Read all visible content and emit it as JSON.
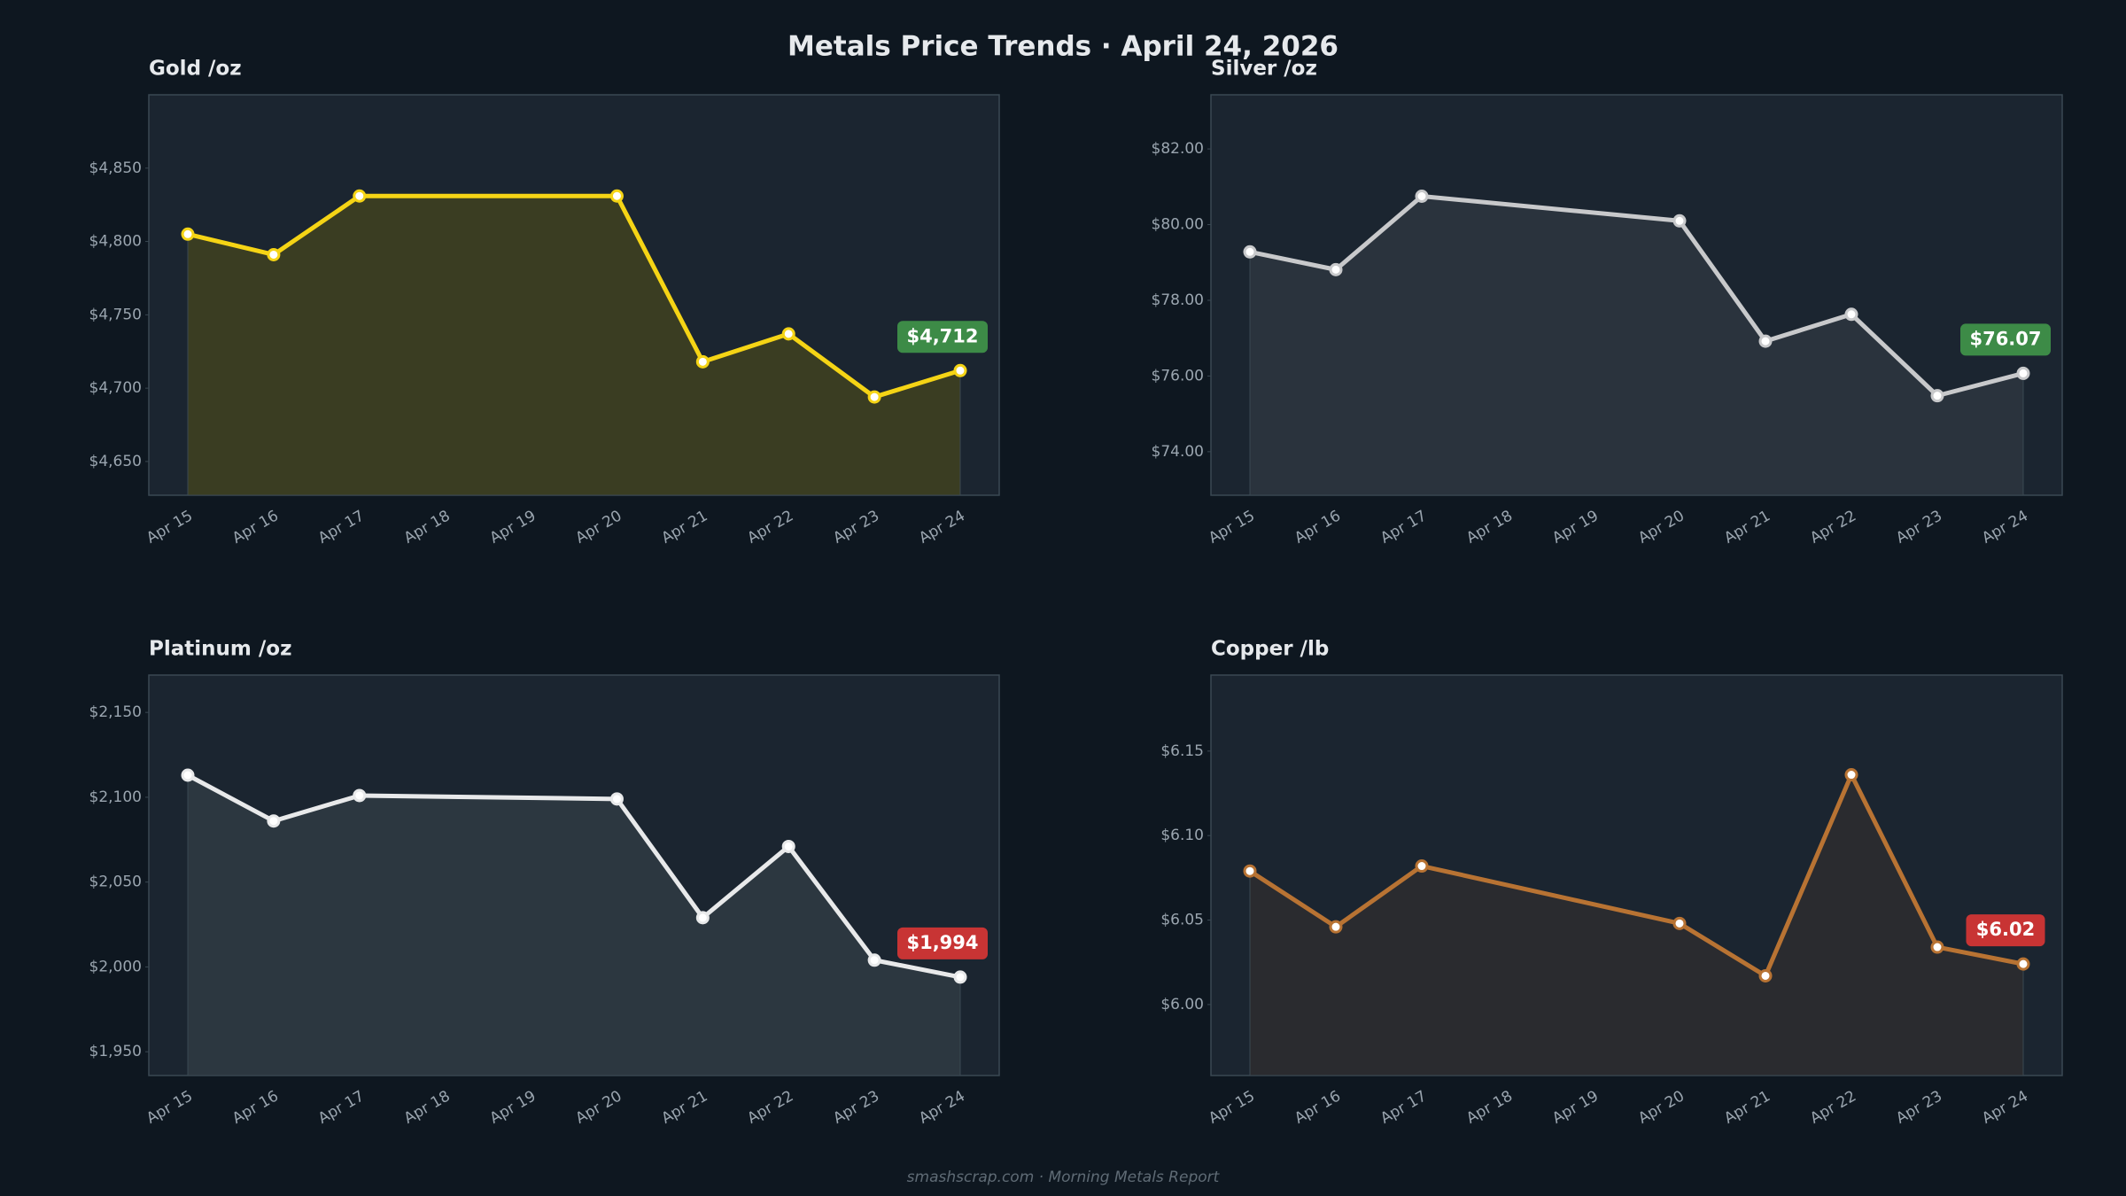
{
  "title": "Metals Price Trends  ·  April 24, 2026",
  "footer": "smashscrap.com  ·  Morning Metals Report",
  "chart_data": [
    {
      "type": "line",
      "title": "Gold  /oz",
      "color": "#f5d415",
      "fill": "#3a3d22",
      "x": [
        "Apr 15",
        "Apr 16",
        "Apr 17",
        "Apr 20",
        "Apr 21",
        "Apr 22",
        "Apr 23",
        "Apr 24"
      ],
      "values": [
        4805,
        4791,
        4831,
        4831,
        4718,
        4737,
        4694,
        4712
      ],
      "value_labels": [
        null,
        null,
        null,
        null,
        null,
        null,
        null,
        "$4,712"
      ],
      "label_color": "#3d8b47",
      "xticks": [
        "Apr 15",
        "Apr 16",
        "Apr 17",
        "Apr 18",
        "Apr 19",
        "Apr 20",
        "Apr 21",
        "Apr 22",
        "Apr 23",
        "Apr 24"
      ],
      "ylim": [
        4627,
        4900
      ],
      "yticks": [
        {
          "value": 4650,
          "label": "$4,650"
        },
        {
          "value": 4700,
          "label": "$4,700"
        },
        {
          "value": 4750,
          "label": "$4,750"
        },
        {
          "value": 4800,
          "label": "$4,800"
        },
        {
          "value": 4850,
          "label": "$4,850"
        }
      ],
      "grid": false
    },
    {
      "type": "line",
      "title": "Silver  /oz",
      "color": "#c8c9cb",
      "fill": "#2a333d",
      "x": [
        "Apr 15",
        "Apr 16",
        "Apr 17",
        "Apr 20",
        "Apr 21",
        "Apr 22",
        "Apr 23",
        "Apr 24"
      ],
      "values": [
        79.28,
        78.81,
        80.75,
        80.1,
        76.92,
        77.63,
        75.48,
        76.07
      ],
      "value_labels": [
        null,
        null,
        null,
        null,
        null,
        null,
        null,
        "$76.07"
      ],
      "label_color": "#3d8b47",
      "xticks": [
        "Apr 15",
        "Apr 16",
        "Apr 17",
        "Apr 18",
        "Apr 19",
        "Apr 20",
        "Apr 21",
        "Apr 22",
        "Apr 23",
        "Apr 24"
      ],
      "ylim": [
        72.85,
        83.43
      ],
      "yticks": [
        {
          "value": 74,
          "label": "$74.00"
        },
        {
          "value": 76,
          "label": "$76.00"
        },
        {
          "value": 78,
          "label": "$78.00"
        },
        {
          "value": 80,
          "label": "$80.00"
        },
        {
          "value": 82,
          "label": "$82.00"
        }
      ],
      "grid": false
    },
    {
      "type": "line",
      "title": "Platinum  /oz",
      "color": "#e8e9ea",
      "fill": "#2c3740",
      "x": [
        "Apr 15",
        "Apr 16",
        "Apr 17",
        "Apr 20",
        "Apr 21",
        "Apr 22",
        "Apr 23",
        "Apr 24"
      ],
      "values": [
        2113,
        2086,
        2101,
        2099,
        2029,
        2071,
        2004,
        1994
      ],
      "value_labels": [
        null,
        null,
        null,
        null,
        null,
        null,
        null,
        "$1,994"
      ],
      "label_color": "#c83434",
      "xticks": [
        "Apr 15",
        "Apr 16",
        "Apr 17",
        "Apr 18",
        "Apr 19",
        "Apr 20",
        "Apr 21",
        "Apr 22",
        "Apr 23",
        "Apr 24"
      ],
      "ylim": [
        1936,
        2172
      ],
      "yticks": [
        {
          "value": 1950,
          "label": "$1,950"
        },
        {
          "value": 2000,
          "label": "$2,000"
        },
        {
          "value": 2050,
          "label": "$2,050"
        },
        {
          "value": 2100,
          "label": "$2,100"
        },
        {
          "value": 2150,
          "label": "$2,150"
        }
      ],
      "grid": false
    },
    {
      "type": "line",
      "title": "Copper  /lb",
      "color": "#b87333",
      "fill": "#2a2b2f",
      "x": [
        "Apr 15",
        "Apr 16",
        "Apr 17",
        "Apr 20",
        "Apr 21",
        "Apr 22",
        "Apr 23",
        "Apr 24"
      ],
      "values": [
        6.079,
        6.046,
        6.082,
        6.048,
        6.017,
        6.136,
        6.034,
        6.024
      ],
      "value_labels": [
        null,
        null,
        null,
        null,
        null,
        null,
        null,
        "$6.02"
      ],
      "label_color": "#c83434",
      "xticks": [
        "Apr 15",
        "Apr 16",
        "Apr 17",
        "Apr 18",
        "Apr 19",
        "Apr 20",
        "Apr 21",
        "Apr 22",
        "Apr 23",
        "Apr 24"
      ],
      "ylim": [
        5.958,
        6.195
      ],
      "yticks": [
        {
          "value": 6.0,
          "label": "$6.00"
        },
        {
          "value": 6.05,
          "label": "$6.05"
        },
        {
          "value": 6.1,
          "label": "$6.10"
        },
        {
          "value": 6.15,
          "label": "$6.15"
        }
      ],
      "grid": false
    }
  ]
}
